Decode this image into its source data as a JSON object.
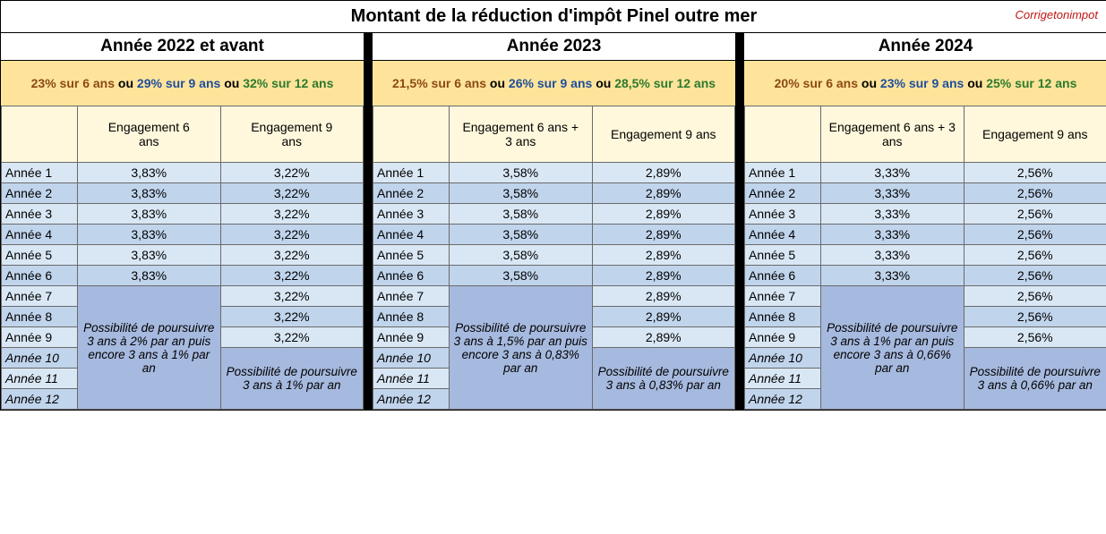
{
  "main_title": "Montant de la réduction d'impôt Pinel outre mer",
  "watermark": "Corrigetonimpot",
  "row_labels": [
    "Année 1",
    "Année 2",
    "Année 3",
    "Année 4",
    "Année 5",
    "Année 6",
    "Année 7",
    "Année 8",
    "Année 9",
    "Année 10",
    "Année 11",
    "Année 12"
  ],
  "blocks": [
    {
      "year_title": "Année 2022 et avant",
      "rate6": "23% sur 6 ans",
      "rate9": "29% sur 9 ans",
      "rate12": "32% sur 12 ans",
      "col6_label_a": "Engagement 6",
      "col6_label_b": "ans",
      "col9_label_a": "Engagement 9",
      "col9_label_b": "ans",
      "col6_vals": [
        "3,83%",
        "3,83%",
        "3,83%",
        "3,83%",
        "3,83%",
        "3,83%"
      ],
      "col9_vals": [
        "3,22%",
        "3,22%",
        "3,22%",
        "3,22%",
        "3,22%",
        "3,22%",
        "3,22%",
        "3,22%",
        "3,22%"
      ],
      "note6": "Possibilité de poursuivre 3 ans à 2% par an puis encore 3 ans à 1% par an",
      "note9": "Possibilité de poursuivre 3 ans à 1% par an"
    },
    {
      "year_title": "Année 2023",
      "rate6": "21,5% sur 6 ans",
      "rate9": "26% sur 9 ans",
      "rate12": "28,5% sur 12 ans",
      "col6_label_a": "Engagement 6 ans +",
      "col6_label_b": "3 ans",
      "col9_label_a": "Engagement 9 ans",
      "col9_label_b": "",
      "col6_vals": [
        "3,58%",
        "3,58%",
        "3,58%",
        "3,58%",
        "3,58%",
        "3,58%"
      ],
      "col9_vals": [
        "2,89%",
        "2,89%",
        "2,89%",
        "2,89%",
        "2,89%",
        "2,89%",
        "2,89%",
        "2,89%",
        "2,89%"
      ],
      "note6": "Possibilité de poursuivre 3 ans à 1,5% par an puis encore 3 ans à 0,83% par an",
      "note9": "Possibilité de poursuivre 3 ans à 0,83% par an"
    },
    {
      "year_title": "Année 2024",
      "rate6": "20% sur 6 ans",
      "rate9": "23% sur 9 ans",
      "rate12": "25% sur 12 ans",
      "col6_label_a": "Engagement 6 ans + 3",
      "col6_label_b": "ans",
      "col9_label_a": "Engagement 9 ans",
      "col9_label_b": "",
      "col6_vals": [
        "3,33%",
        "3,33%",
        "3,33%",
        "3,33%",
        "3,33%",
        "3,33%"
      ],
      "col9_vals": [
        "2,56%",
        "2,56%",
        "2,56%",
        "2,56%",
        "2,56%",
        "2,56%",
        "2,56%",
        "2,56%",
        "2,56%"
      ],
      "note6": "Possibilité de poursuivre 3 ans à 1% par an puis encore 3 ans à 0,66% par an",
      "note9": "Possibilité de poursuivre 3 ans à 0,66% par an"
    }
  ]
}
